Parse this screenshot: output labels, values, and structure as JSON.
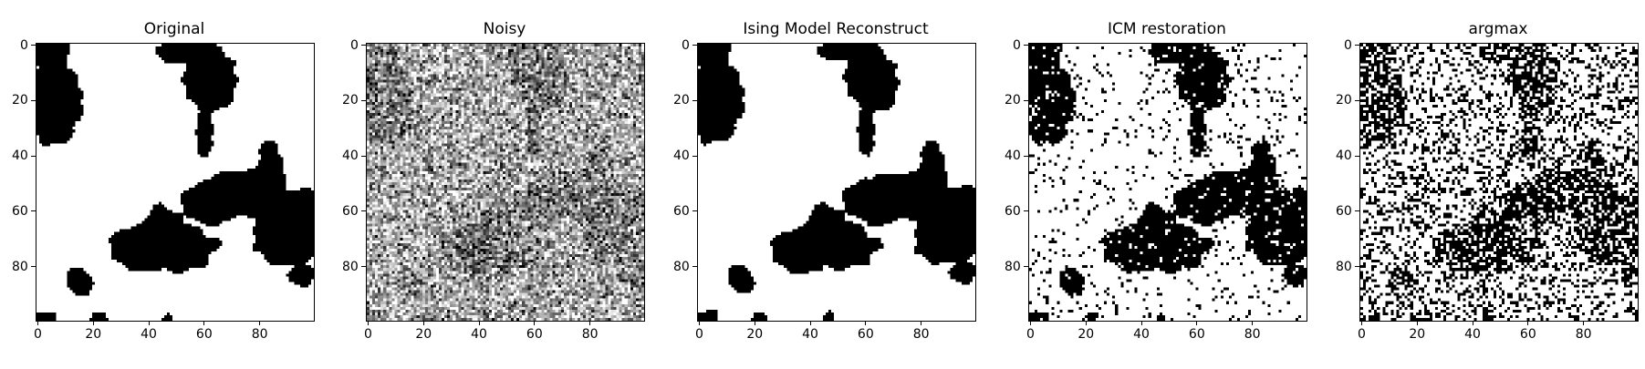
{
  "figure": {
    "panels": [
      {
        "id": "original",
        "title": "Original"
      },
      {
        "id": "noisy",
        "title": "Noisy"
      },
      {
        "id": "ising",
        "title": "Ising Model Reconstruct"
      },
      {
        "id": "icm",
        "title": "ICM restoration"
      },
      {
        "id": "argmax",
        "title": "argmax"
      }
    ]
  },
  "chart_data": [
    {
      "type": "heatmap",
      "title": "Original",
      "xlabel": "",
      "ylabel": "",
      "xlim": [
        0,
        100
      ],
      "ylim": [
        100,
        0
      ],
      "grid": false,
      "xticks": [
        0,
        20,
        40,
        60,
        80
      ],
      "yticks": [
        0,
        20,
        40,
        60,
        80
      ],
      "xtick_labels": [
        "0",
        "20",
        "40",
        "60",
        "80"
      ],
      "ytick_labels": [
        "0",
        "20",
        "40",
        "60",
        "80"
      ],
      "colormap": "binary",
      "colors": {
        "low": "#000000",
        "high": "#ffffff"
      },
      "description_of_values": "100x100 binary image (black blobs on white)"
    },
    {
      "type": "heatmap",
      "title": "Noisy",
      "xlabel": "",
      "ylabel": "",
      "xlim": [
        0,
        100
      ],
      "ylim": [
        100,
        0
      ],
      "grid": false,
      "xticks": [
        0,
        20,
        40,
        60,
        80
      ],
      "yticks": [
        0,
        20,
        40,
        60,
        80
      ],
      "xtick_labels": [
        "0",
        "20",
        "40",
        "60",
        "80"
      ],
      "ytick_labels": [
        "0",
        "20",
        "40",
        "60",
        "80"
      ],
      "colormap": "gray"
    },
    {
      "type": "heatmap",
      "title": "Ising Model Reconstruct",
      "xlabel": "",
      "ylabel": "",
      "xlim": [
        0,
        100
      ],
      "ylim": [
        100,
        0
      ],
      "grid": false,
      "xticks": [
        0,
        20,
        40,
        60,
        80
      ],
      "yticks": [
        0,
        20,
        40,
        60,
        80
      ],
      "xtick_labels": [
        "0",
        "20",
        "40",
        "60",
        "80"
      ],
      "ytick_labels": [
        "0",
        "20",
        "40",
        "60",
        "80"
      ],
      "colormap": "binary"
    },
    {
      "type": "heatmap",
      "title": "ICM restoration",
      "xlabel": "",
      "ylabel": "",
      "xlim": [
        0,
        100
      ],
      "ylim": [
        100,
        0
      ],
      "grid": false,
      "xticks": [
        0,
        20,
        40,
        60,
        80
      ],
      "yticks": [
        0,
        20,
        40,
        60,
        80
      ],
      "xtick_labels": [
        "0",
        "20",
        "40",
        "60",
        "80"
      ],
      "ytick_labels": [
        "0",
        "20",
        "40",
        "60",
        "80"
      ],
      "colormap": "binary"
    },
    {
      "type": "heatmap",
      "title": "argmax",
      "xlabel": "",
      "ylabel": "",
      "xlim": [
        0,
        100
      ],
      "ylim": [
        100,
        0
      ],
      "grid": false,
      "xticks": [
        0,
        20,
        40,
        60,
        80
      ],
      "yticks": [
        0,
        20,
        40,
        60,
        80
      ],
      "xtick_labels": [
        "0",
        "20",
        "40",
        "60",
        "80"
      ],
      "ytick_labels": [
        "0",
        "20",
        "40",
        "60",
        "80"
      ],
      "colormap": "binary"
    }
  ]
}
